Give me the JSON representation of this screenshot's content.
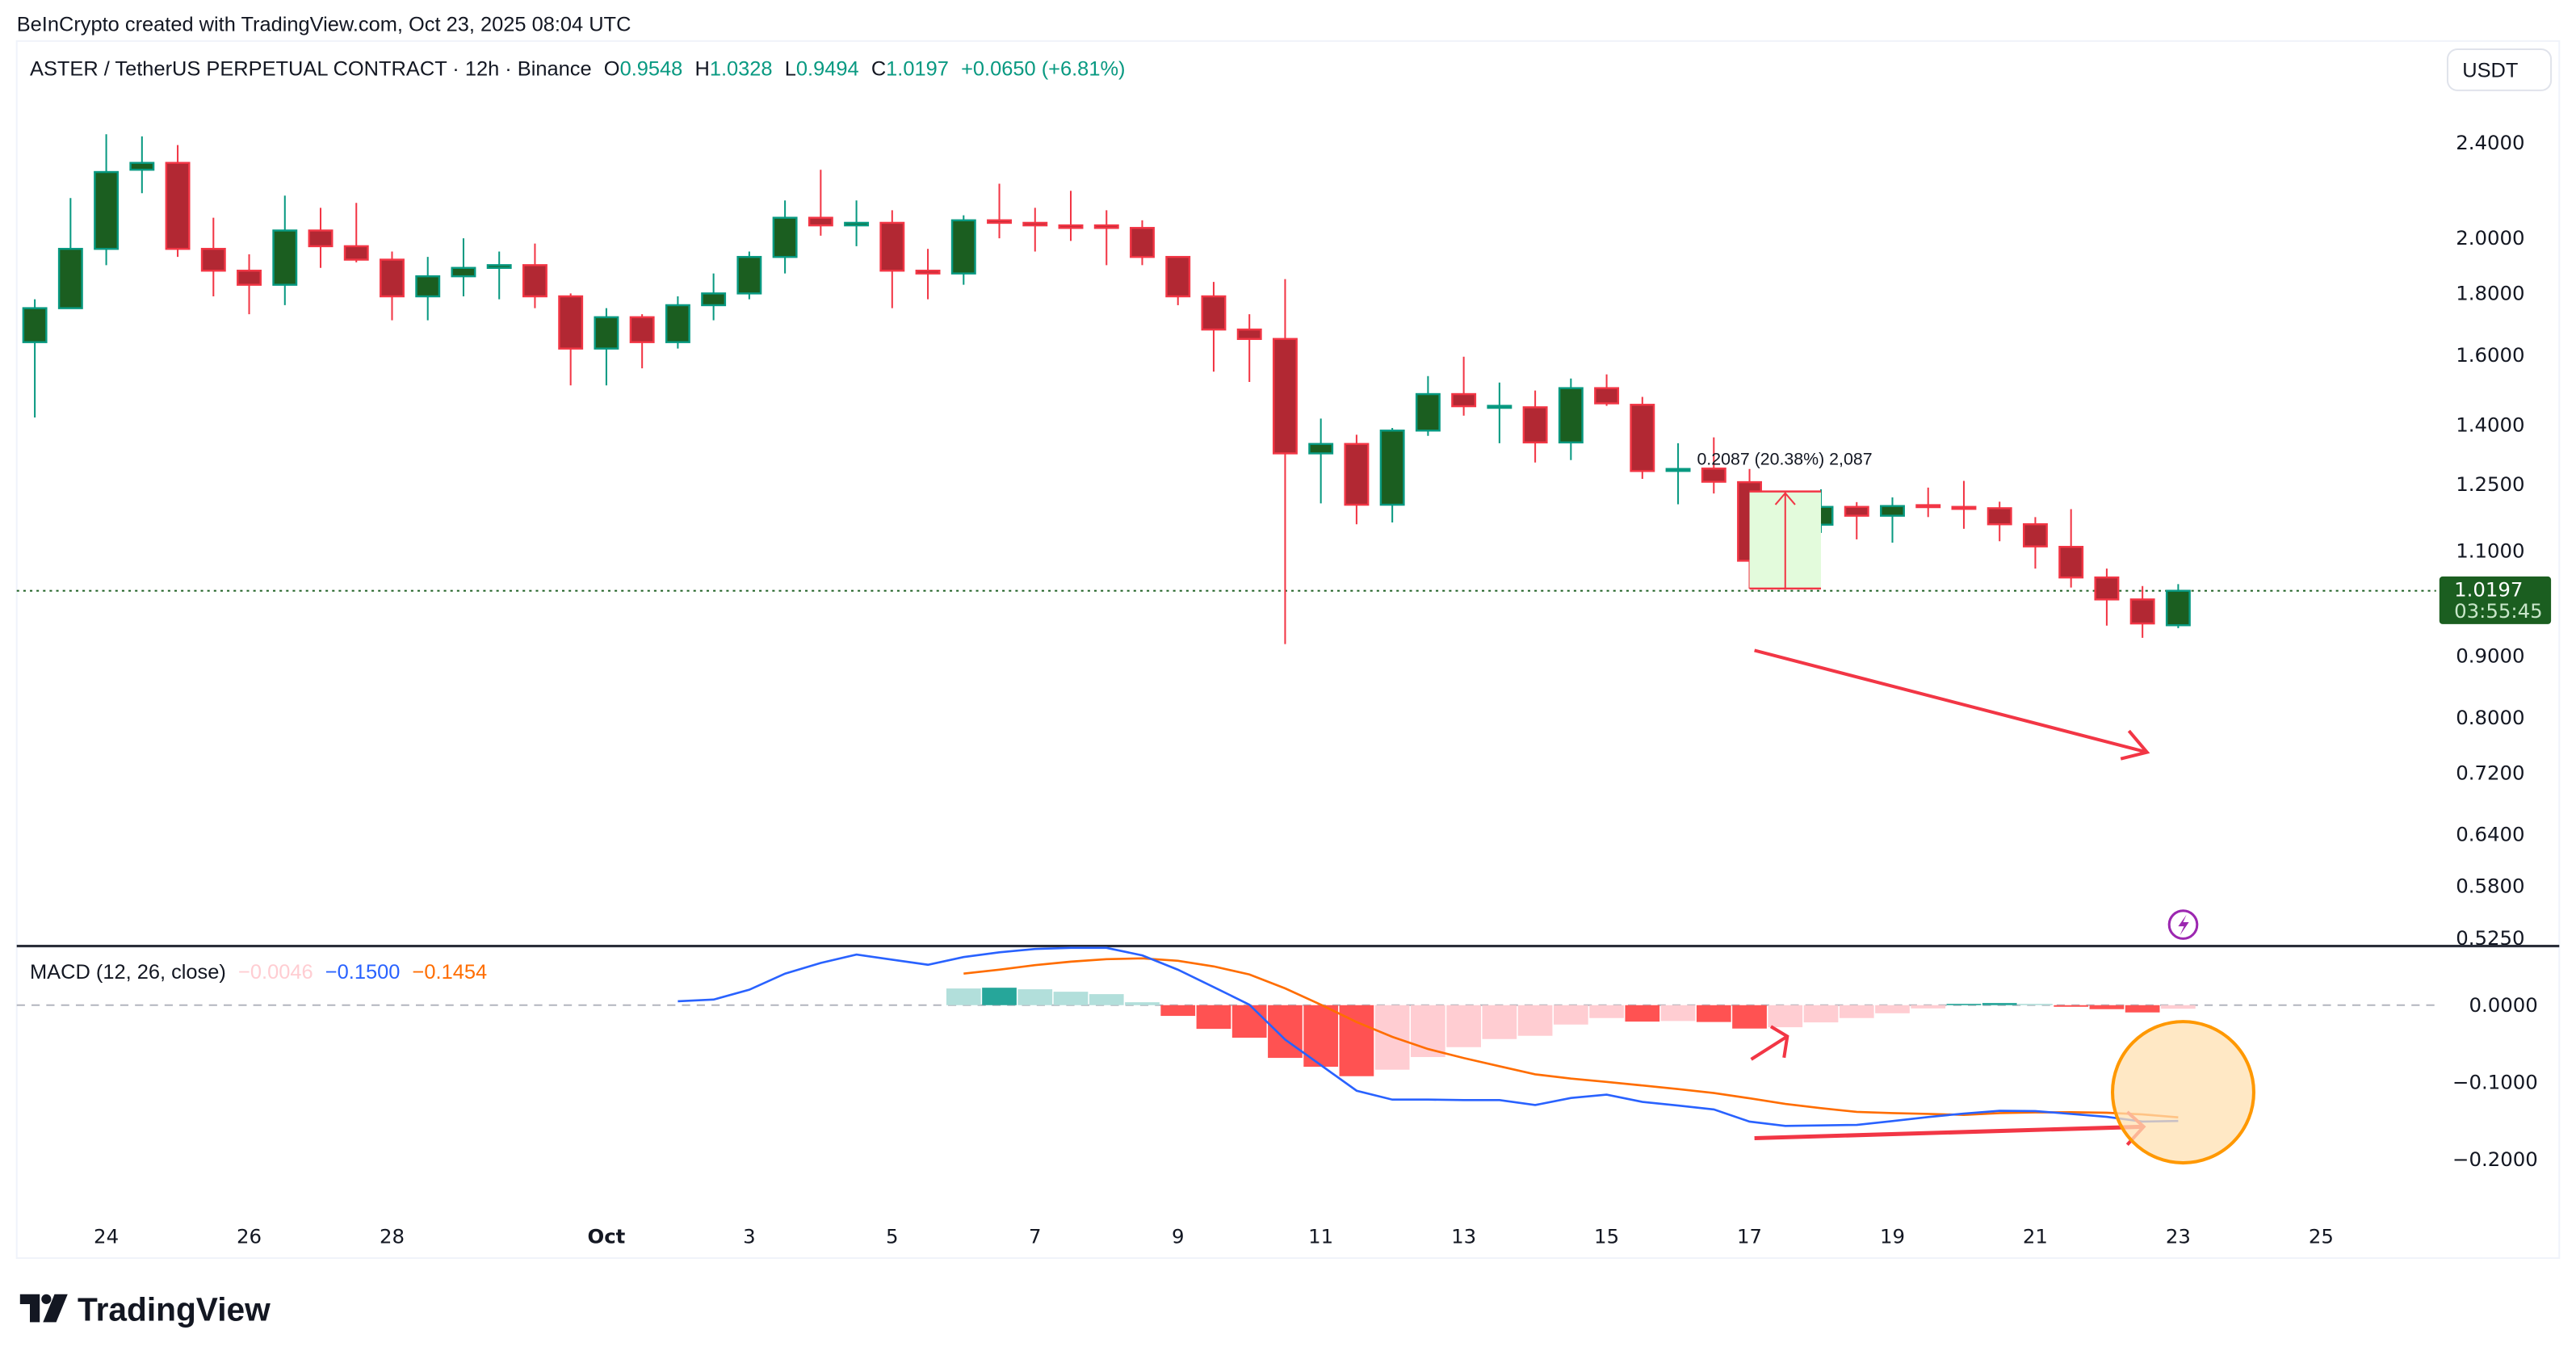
{
  "watermark": "BeInCrypto created with TradingView.com, Oct 23, 2025 08:04 UTC",
  "header": {
    "symbol": "ASTER / TetherUS PERPETUAL CONTRACT · 12h · Binance",
    "o_label": "O",
    "o_value": "0.9548",
    "h_label": "H",
    "h_value": "1.0328",
    "l_label": "L",
    "l_value": "0.9494",
    "c_label": "C",
    "c_value": "1.0197",
    "change": "+0.0650 (+6.81%)"
  },
  "currency_button": "USDT",
  "price_axis": {
    "scale": "log",
    "ticks": [
      "2.4000",
      "2.0000",
      "1.8000",
      "1.6000",
      "1.4000",
      "1.2500",
      "1.1000",
      "0.9000",
      "0.8000",
      "0.7200",
      "0.6400",
      "0.5800",
      "0.5250"
    ]
  },
  "last_price": {
    "price": "1.0197",
    "countdown": "03:55:45"
  },
  "measure_label": "0.2087 (20.38%) 2,087",
  "macd_legend": {
    "title": "MACD (12, 26, close)",
    "histogram": "−0.0046",
    "macd": "−0.1500",
    "signal": "−0.1454"
  },
  "macd_axis": {
    "ticks": [
      "0.0000",
      "−0.1000",
      "−0.2000"
    ]
  },
  "time_axis": [
    {
      "label": "24",
      "date": "2025-09-24"
    },
    {
      "label": "26",
      "date": "2025-09-26"
    },
    {
      "label": "28",
      "date": "2025-09-28"
    },
    {
      "label": "Oct",
      "date": "2025-10-01",
      "bold": true
    },
    {
      "label": "3",
      "date": "2025-10-03"
    },
    {
      "label": "5",
      "date": "2025-10-05"
    },
    {
      "label": "7",
      "date": "2025-10-07"
    },
    {
      "label": "9",
      "date": "2025-10-09"
    },
    {
      "label": "11",
      "date": "2025-10-11"
    },
    {
      "label": "13",
      "date": "2025-10-13"
    },
    {
      "label": "15",
      "date": "2025-10-15"
    },
    {
      "label": "17",
      "date": "2025-10-17"
    },
    {
      "label": "19",
      "date": "2025-10-19"
    },
    {
      "label": "21",
      "date": "2025-10-21"
    },
    {
      "label": "23",
      "date": "2025-10-23"
    },
    {
      "label": "25",
      "date": "2025-10-25"
    }
  ],
  "footer_logo": "TradingView",
  "colors": {
    "up_body": "#1b5e20",
    "up_border": "#089981",
    "down_body": "#b22833",
    "down_border": "#f23645",
    "macd_line": "#2962ff",
    "signal_line": "#ff6d00",
    "hist_pos_rising": "#26a69a",
    "hist_pos_falling": "#b2dfdb",
    "hist_neg_falling": "#ff5252",
    "hist_neg_rising": "#ffcdd2",
    "last_price_tag": "#1b5e20",
    "annotation_red": "#f23645",
    "highlight_circle": "#ff9800",
    "lightning_icon": "#9c27b0"
  },
  "icons": {
    "lightning": "lightning-icon",
    "logo": "tradingview-logo-icon"
  },
  "chart_data": {
    "type": "candlestick",
    "interval": "12h",
    "y_scale": "log",
    "ylim": [
      0.525,
      2.4
    ],
    "candles": [
      {
        "t": "2025-09-23T00:00",
        "o": 1.64,
        "h": 1.78,
        "l": 1.42,
        "c": 1.75
      },
      {
        "t": "2025-09-23T12:00",
        "o": 1.75,
        "h": 2.16,
        "l": 1.75,
        "c": 1.96
      },
      {
        "t": "2025-09-24T00:00",
        "o": 1.96,
        "h": 2.44,
        "l": 1.9,
        "c": 2.27
      },
      {
        "t": "2025-09-24T12:00",
        "o": 2.28,
        "h": 2.43,
        "l": 2.18,
        "c": 2.31
      },
      {
        "t": "2025-09-25T00:00",
        "o": 2.31,
        "h": 2.39,
        "l": 1.93,
        "c": 1.96
      },
      {
        "t": "2025-09-25T12:00",
        "o": 1.96,
        "h": 2.08,
        "l": 1.79,
        "c": 1.88
      },
      {
        "t": "2025-09-26T00:00",
        "o": 1.88,
        "h": 1.94,
        "l": 1.73,
        "c": 1.83
      },
      {
        "t": "2025-09-26T12:00",
        "o": 1.83,
        "h": 2.17,
        "l": 1.76,
        "c": 2.03
      },
      {
        "t": "2025-09-27T00:00",
        "o": 2.03,
        "h": 2.12,
        "l": 1.89,
        "c": 1.97
      },
      {
        "t": "2025-09-27T12:00",
        "o": 1.97,
        "h": 2.14,
        "l": 1.91,
        "c": 1.92
      },
      {
        "t": "2025-09-28T00:00",
        "o": 1.92,
        "h": 1.95,
        "l": 1.71,
        "c": 1.79
      },
      {
        "t": "2025-09-28T12:00",
        "o": 1.79,
        "h": 1.93,
        "l": 1.71,
        "c": 1.86
      },
      {
        "t": "2025-09-29T00:00",
        "o": 1.86,
        "h": 2.0,
        "l": 1.79,
        "c": 1.89
      },
      {
        "t": "2025-09-29T12:00",
        "o": 1.89,
        "h": 1.95,
        "l": 1.78,
        "c": 1.9
      },
      {
        "t": "2025-09-30T00:00",
        "o": 1.9,
        "h": 1.98,
        "l": 1.75,
        "c": 1.79
      },
      {
        "t": "2025-09-30T12:00",
        "o": 1.79,
        "h": 1.8,
        "l": 1.51,
        "c": 1.62
      },
      {
        "t": "2025-10-01T00:00",
        "o": 1.62,
        "h": 1.75,
        "l": 1.51,
        "c": 1.72
      },
      {
        "t": "2025-10-01T12:00",
        "o": 1.72,
        "h": 1.73,
        "l": 1.56,
        "c": 1.64
      },
      {
        "t": "2025-10-02T00:00",
        "o": 1.64,
        "h": 1.79,
        "l": 1.62,
        "c": 1.76
      },
      {
        "t": "2025-10-02T12:00",
        "o": 1.76,
        "h": 1.87,
        "l": 1.71,
        "c": 1.8
      },
      {
        "t": "2025-10-03T00:00",
        "o": 1.8,
        "h": 1.95,
        "l": 1.78,
        "c": 1.93
      },
      {
        "t": "2025-10-03T12:00",
        "o": 1.93,
        "h": 2.15,
        "l": 1.87,
        "c": 2.08
      },
      {
        "t": "2025-10-04T00:00",
        "o": 2.08,
        "h": 2.28,
        "l": 2.01,
        "c": 2.05
      },
      {
        "t": "2025-10-04T12:00",
        "o": 2.05,
        "h": 2.15,
        "l": 1.97,
        "c": 2.06
      },
      {
        "t": "2025-10-05T00:00",
        "o": 2.06,
        "h": 2.11,
        "l": 1.75,
        "c": 1.88
      },
      {
        "t": "2025-10-05T12:00",
        "o": 1.88,
        "h": 1.96,
        "l": 1.78,
        "c": 1.87
      },
      {
        "t": "2025-10-06T00:00",
        "o": 1.87,
        "h": 2.09,
        "l": 1.83,
        "c": 2.07
      },
      {
        "t": "2025-10-06T12:00",
        "o": 2.07,
        "h": 2.22,
        "l": 2.0,
        "c": 2.06
      },
      {
        "t": "2025-10-07T00:00",
        "o": 2.06,
        "h": 2.12,
        "l": 1.95,
        "c": 2.05
      },
      {
        "t": "2025-10-07T12:00",
        "o": 2.05,
        "h": 2.19,
        "l": 1.99,
        "c": 2.04
      },
      {
        "t": "2025-10-08T00:00",
        "o": 2.05,
        "h": 2.11,
        "l": 1.9,
        "c": 2.04
      },
      {
        "t": "2025-10-08T12:00",
        "o": 2.04,
        "h": 2.07,
        "l": 1.9,
        "c": 1.93
      },
      {
        "t": "2025-10-09T00:00",
        "o": 1.93,
        "h": 1.93,
        "l": 1.76,
        "c": 1.79
      },
      {
        "t": "2025-10-09T12:00",
        "o": 1.79,
        "h": 1.84,
        "l": 1.55,
        "c": 1.68
      },
      {
        "t": "2025-10-10T00:00",
        "o": 1.68,
        "h": 1.73,
        "l": 1.52,
        "c": 1.65
      },
      {
        "t": "2025-10-10T12:00",
        "o": 1.65,
        "h": 1.85,
        "l": 0.921,
        "c": 1.326
      },
      {
        "t": "2025-10-11T00:00",
        "o": 1.326,
        "h": 1.417,
        "l": 1.205,
        "c": 1.35
      },
      {
        "t": "2025-10-11T12:00",
        "o": 1.35,
        "h": 1.374,
        "l": 1.158,
        "c": 1.202
      },
      {
        "t": "2025-10-12T00:00",
        "o": 1.202,
        "h": 1.392,
        "l": 1.162,
        "c": 1.385
      },
      {
        "t": "2025-10-12T12:00",
        "o": 1.385,
        "h": 1.537,
        "l": 1.371,
        "c": 1.485
      },
      {
        "t": "2025-10-13T00:00",
        "o": 1.485,
        "h": 1.595,
        "l": 1.425,
        "c": 1.451
      },
      {
        "t": "2025-10-13T12:00",
        "o": 1.45,
        "h": 1.518,
        "l": 1.352,
        "c": 1.452
      },
      {
        "t": "2025-10-14T00:00",
        "o": 1.448,
        "h": 1.495,
        "l": 1.303,
        "c": 1.354
      },
      {
        "t": "2025-10-14T12:00",
        "o": 1.354,
        "h": 1.53,
        "l": 1.309,
        "c": 1.502
      },
      {
        "t": "2025-10-15T00:00",
        "o": 1.502,
        "h": 1.542,
        "l": 1.452,
        "c": 1.459
      },
      {
        "t": "2025-10-15T12:00",
        "o": 1.455,
        "h": 1.477,
        "l": 1.263,
        "c": 1.282
      },
      {
        "t": "2025-10-16T00:00",
        "o": 1.284,
        "h": 1.352,
        "l": 1.203,
        "c": 1.287
      },
      {
        "t": "2025-10-16T12:00",
        "o": 1.288,
        "h": 1.367,
        "l": 1.228,
        "c": 1.256
      },
      {
        "t": "2025-10-17T00:00",
        "o": 1.255,
        "h": 1.287,
        "l": 1.024,
        "c": 1.08
      },
      {
        "t": "2025-10-17T12:00",
        "o": 1.08,
        "h": 1.176,
        "l": 1.048,
        "c": 1.157
      },
      {
        "t": "2025-10-18T00:00",
        "o": 1.157,
        "h": 1.238,
        "l": 1.139,
        "c": 1.197
      },
      {
        "t": "2025-10-18T12:00",
        "o": 1.197,
        "h": 1.208,
        "l": 1.125,
        "c": 1.177
      },
      {
        "t": "2025-10-19T00:00",
        "o": 1.177,
        "h": 1.219,
        "l": 1.118,
        "c": 1.199
      },
      {
        "t": "2025-10-19T12:00",
        "o": 1.201,
        "h": 1.242,
        "l": 1.174,
        "c": 1.199
      },
      {
        "t": "2025-10-20T00:00",
        "o": 1.197,
        "h": 1.258,
        "l": 1.148,
        "c": 1.195
      },
      {
        "t": "2025-10-20T12:00",
        "o": 1.194,
        "h": 1.209,
        "l": 1.121,
        "c": 1.158
      },
      {
        "t": "2025-10-21T00:00",
        "o": 1.158,
        "h": 1.174,
        "l": 1.064,
        "c": 1.11
      },
      {
        "t": "2025-10-21T12:00",
        "o": 1.109,
        "h": 1.192,
        "l": 1.026,
        "c": 1.046
      },
      {
        "t": "2025-10-22T00:00",
        "o": 1.046,
        "h": 1.064,
        "l": 0.954,
        "c": 1.003
      },
      {
        "t": "2025-10-22T12:00",
        "o": 1.003,
        "h": 1.029,
        "l": 0.932,
        "c": 0.958
      },
      {
        "t": "2025-10-23T00:00",
        "o": 0.9548,
        "h": 1.0328,
        "l": 0.9494,
        "c": 1.0197
      }
    ],
    "macd": {
      "ylim": [
        -0.25,
        0.08
      ],
      "macd": [
        null,
        null,
        null,
        null,
        null,
        null,
        null,
        null,
        null,
        null,
        null,
        null,
        null,
        null,
        null,
        null,
        null,
        null,
        0.0052,
        0.0073,
        0.0199,
        0.0408,
        0.0547,
        0.0655,
        0.0589,
        0.0523,
        0.0624,
        0.0686,
        0.0728,
        0.0742,
        0.0742,
        0.0645,
        0.046,
        0.0233,
        0.0007,
        -0.0446,
        -0.0777,
        -0.1108,
        -0.1223,
        -0.1223,
        -0.123,
        -0.123,
        -0.1293,
        -0.1202,
        -0.116,
        -0.1254,
        -0.13,
        -0.1352,
        -0.1509,
        -0.1564,
        -0.1557,
        -0.155,
        -0.1502,
        -0.145,
        -0.1404,
        -0.1369,
        -0.1373,
        -0.1408,
        -0.1446,
        -0.1509,
        -0.15
      ],
      "signal": [
        null,
        null,
        null,
        null,
        null,
        null,
        null,
        null,
        null,
        null,
        null,
        null,
        null,
        null,
        null,
        null,
        null,
        null,
        null,
        null,
        null,
        null,
        null,
        null,
        null,
        null,
        0.0408,
        0.046,
        0.0519,
        0.0564,
        0.0596,
        0.0606,
        0.0575,
        0.0502,
        0.0397,
        0.0216,
        0.0007,
        -0.022,
        -0.0411,
        -0.0568,
        -0.0686,
        -0.0791,
        -0.0896,
        -0.0951,
        -0.0993,
        -0.1041,
        -0.1087,
        -0.1139,
        -0.1206,
        -0.1278,
        -0.1334,
        -0.1383,
        -0.1397,
        -0.1408,
        -0.1421,
        -0.1397,
        -0.139,
        -0.1387,
        -0.1394,
        -0.1415,
        -0.1454
      ],
      "histogram": [
        null,
        null,
        null,
        null,
        null,
        null,
        null,
        null,
        null,
        null,
        null,
        null,
        null,
        null,
        null,
        null,
        null,
        null,
        null,
        null,
        null,
        null,
        null,
        null,
        null,
        null,
        0.0216,
        0.0226,
        0.0206,
        0.0174,
        0.0143,
        0.0038,
        -0.0139,
        -0.0307,
        -0.0422,
        -0.0683,
        -0.0798,
        -0.092,
        -0.0836,
        -0.0672,
        -0.0544,
        -0.0439,
        -0.0397,
        -0.0251,
        -0.0167,
        -0.0213,
        -0.0205,
        -0.0218,
        -0.0303,
        -0.0286,
        -0.0223,
        -0.0167,
        -0.0105,
        -0.0042,
        0.0017,
        0.0028,
        0.0017,
        -0.0021,
        -0.0052,
        -0.0094,
        -0.0046
      ]
    }
  }
}
